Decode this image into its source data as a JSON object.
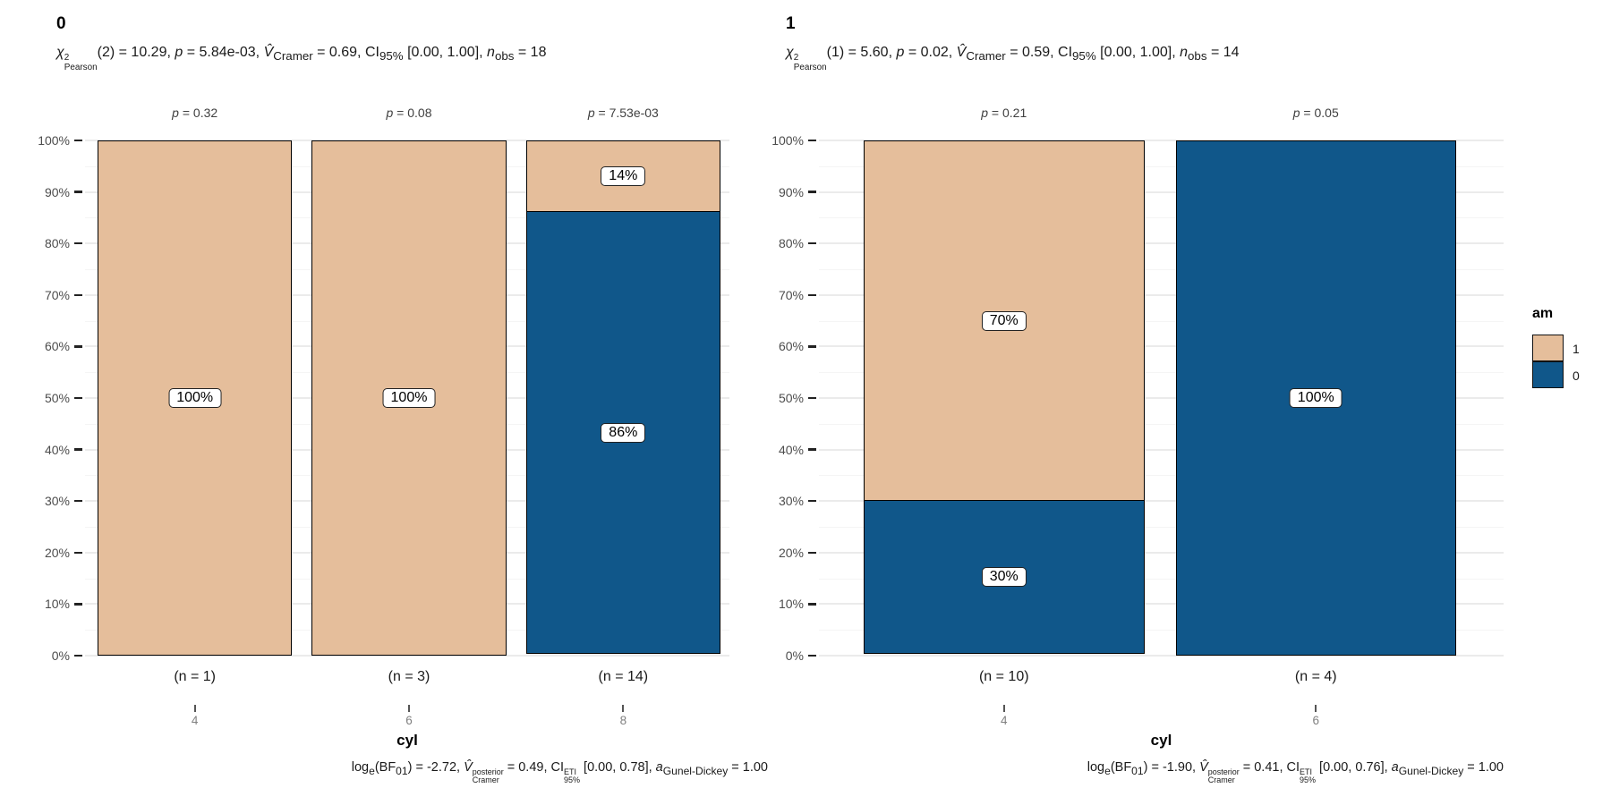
{
  "figure": {
    "background": "#ffffff"
  },
  "colors": {
    "series_1_fill": "#e5be9b",
    "series_0_fill": "#10578a",
    "bar_border": "#000000",
    "grid_major": "#ebebeb",
    "grid_minor": "#f5f5f5",
    "y_tick_text": "#4d4d4d",
    "x_number_text": "#808080",
    "text": "#1a1a1a"
  },
  "legend": {
    "title": "am",
    "items": [
      {
        "label": "1",
        "color": "#e5be9b"
      },
      {
        "label": "0",
        "color": "#10578a"
      }
    ]
  },
  "chart_data": [
    {
      "type": "bar",
      "stacked": true,
      "y_unit": "percent",
      "title": "0",
      "subtitle_html": "<i>χ</i><span class='ss'><sup>2</sup><sub>Pearson</sub></span>(2) = 10.29, <i>p</i> = 5.84e-03, <i>V̂</i><sub>Cramer</sub> = 0.69, CI<sub>95%</sub> [0.00, 1.00], <i>n</i><sub>obs</sub> = 18",
      "caption_html": "log<sub>e</sub>(BF<sub>01</sub>) = -2.72, <i>V̂</i><span class='ss'><sup>posterior</sup><sub>Cramer</sub></span> = 0.49, CI<span class='ss'><sup>ETI</sup><sub>95%</sub></span> [0.00, 0.78], <i>a</i><sub>Gunel-Dickey</sub> = 1.00",
      "xlabel": "cyl",
      "ylim": [
        0,
        100
      ],
      "y_tick_labels": [
        "0%",
        "10%",
        "20%",
        "30%",
        "40%",
        "50%",
        "60%",
        "70%",
        "80%",
        "90%",
        "100%"
      ],
      "categories": [
        "4",
        "6",
        "8"
      ],
      "series": [
        {
          "name": "1",
          "values": [
            100,
            100,
            14
          ]
        },
        {
          "name": "0",
          "values": [
            0,
            0,
            86
          ]
        }
      ],
      "bars": [
        {
          "x_tick": "4",
          "n_label": "(n = 1)",
          "p_html": "<i>p</i> = 0.32",
          "segments": [
            {
              "series": "1",
              "value": 100,
              "label": "100%"
            }
          ]
        },
        {
          "x_tick": "6",
          "n_label": "(n = 3)",
          "p_html": "<i>p</i> = 0.08",
          "segments": [
            {
              "series": "1",
              "value": 100,
              "label": "100%"
            }
          ]
        },
        {
          "x_tick": "8",
          "n_label": "(n = 14)",
          "p_html": "<i>p</i> = 7.53e-03",
          "segments": [
            {
              "series": "1",
              "value": 14,
              "label": "14%"
            },
            {
              "series": "0",
              "value": 86,
              "label": "86%"
            }
          ]
        }
      ]
    },
    {
      "type": "bar",
      "stacked": true,
      "y_unit": "percent",
      "title": "1",
      "subtitle_html": "<i>χ</i><span class='ss'><sup>2</sup><sub>Pearson</sub></span>(1) = 5.60, <i>p</i> = 0.02, <i>V̂</i><sub>Cramer</sub> = 0.59, CI<sub>95%</sub> [0.00, 1.00], <i>n</i><sub>obs</sub> = 14",
      "caption_html": "log<sub>e</sub>(BF<sub>01</sub>) = -1.90, <i>V̂</i><span class='ss'><sup>posterior</sup><sub>Cramer</sub></span> = 0.41, CI<span class='ss'><sup>ETI</sup><sub>95%</sub></span> [0.00, 0.76], <i>a</i><sub>Gunel-Dickey</sub> = 1.00",
      "xlabel": "cyl",
      "ylim": [
        0,
        100
      ],
      "y_tick_labels": [
        "0%",
        "10%",
        "20%",
        "30%",
        "40%",
        "50%",
        "60%",
        "70%",
        "80%",
        "90%",
        "100%"
      ],
      "categories": [
        "4",
        "6"
      ],
      "series": [
        {
          "name": "1",
          "values": [
            70,
            0
          ]
        },
        {
          "name": "0",
          "values": [
            30,
            100
          ]
        }
      ],
      "bars": [
        {
          "x_tick": "4",
          "n_label": "(n = 10)",
          "p_html": "<i>p</i> = 0.21",
          "segments": [
            {
              "series": "1",
              "value": 70,
              "label": "70%"
            },
            {
              "series": "0",
              "value": 30,
              "label": "30%"
            }
          ]
        },
        {
          "x_tick": "6",
          "n_label": "(n = 4)",
          "p_html": "<i>p</i> = 0.05",
          "segments": [
            {
              "series": "0",
              "value": 100,
              "label": "100%"
            }
          ]
        }
      ]
    }
  ]
}
